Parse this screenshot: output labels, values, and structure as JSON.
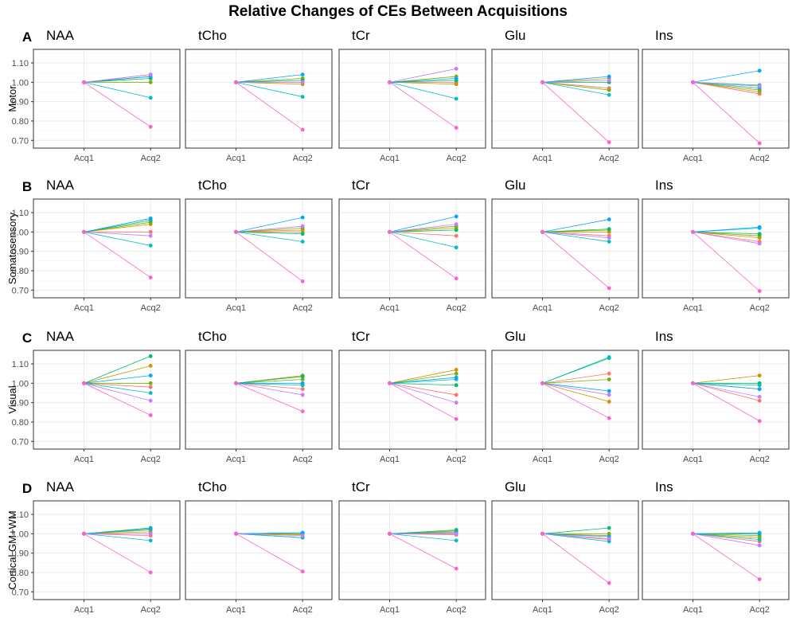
{
  "chart_data": {
    "type": "line",
    "title": "Relative Changes of CEs Between Acquisitions",
    "x": [
      "Acq1",
      "Acq2"
    ],
    "ylim": [
      0.66,
      1.17
    ],
    "yticks": [
      "0.70",
      "0.80",
      "0.90",
      "1.00",
      "1.10"
    ],
    "metabolites": [
      "NAA",
      "tCho",
      "tCr",
      "Glu",
      "Ins"
    ],
    "colors": [
      "#F8766D",
      "#CD9600",
      "#7CAE00",
      "#00BE67",
      "#00BFC4",
      "#00A9FF",
      "#C77CFF",
      "#FF61CC"
    ],
    "rows": [
      {
        "letter": "A",
        "region": "Motor",
        "panels": [
          {
            "metabolite": "NAA",
            "acq1": 1.0,
            "acq2": [
              1.04,
              1.03,
              1.0,
              1.02,
              0.92,
              1.03,
              1.04,
              0.77
            ]
          },
          {
            "metabolite": "tCho",
            "acq1": 1.0,
            "acq2": [
              1.0,
              0.99,
              1.02,
              1.01,
              0.925,
              1.04,
              1.0,
              0.755
            ]
          },
          {
            "metabolite": "tCr",
            "acq1": 1.0,
            "acq2": [
              1.0,
              0.99,
              1.03,
              1.01,
              0.915,
              1.02,
              1.07,
              0.765
            ]
          },
          {
            "metabolite": "Glu",
            "acq1": 1.0,
            "acq2": [
              0.97,
              1.02,
              0.96,
              1.0,
              0.935,
              1.03,
              1.01,
              0.69
            ]
          },
          {
            "metabolite": "Ins",
            "acq1": 1.0,
            "acq2": [
              0.94,
              0.95,
              0.96,
              0.985,
              0.97,
              1.06,
              0.98,
              0.685
            ]
          }
        ]
      },
      {
        "letter": "B",
        "region": "Somatosensory",
        "panels": [
          {
            "metabolite": "NAA",
            "acq1": 1.0,
            "acq2": [
              1.0,
              1.04,
              1.05,
              1.06,
              0.93,
              1.07,
              0.98,
              0.765
            ]
          },
          {
            "metabolite": "tCho",
            "acq1": 1.0,
            "acq2": [
              1.0,
              1.01,
              1.02,
              0.99,
              0.95,
              1.075,
              1.03,
              0.745
            ]
          },
          {
            "metabolite": "tCr",
            "acq1": 1.0,
            "acq2": [
              0.98,
              1.02,
              1.03,
              1.01,
              0.92,
              1.08,
              1.04,
              0.76
            ]
          },
          {
            "metabolite": "Glu",
            "acq1": 1.0,
            "acq2": [
              0.98,
              1.0,
              1.01,
              1.015,
              0.95,
              1.065,
              0.97,
              0.71
            ]
          },
          {
            "metabolite": "Ins",
            "acq1": 1.0,
            "acq2": [
              0.95,
              0.97,
              0.98,
              0.99,
              1.02,
              1.025,
              0.94,
              0.695
            ]
          }
        ]
      },
      {
        "letter": "C",
        "region": "Visual",
        "panels": [
          {
            "metabolite": "NAA",
            "acq1": 1.0,
            "acq2": [
              0.98,
              1.09,
              1.0,
              1.14,
              0.95,
              1.04,
              0.91,
              0.835
            ]
          },
          {
            "metabolite": "tCho",
            "acq1": 1.0,
            "acq2": [
              0.97,
              1.04,
              1.02,
              1.035,
              0.99,
              1.0,
              0.94,
              0.855
            ]
          },
          {
            "metabolite": "tCr",
            "acq1": 1.0,
            "acq2": [
              0.94,
              1.07,
              1.05,
              0.99,
              1.02,
              1.03,
              0.9,
              0.815
            ]
          },
          {
            "metabolite": "Glu",
            "acq1": 1.0,
            "acq2": [
              1.05,
              0.905,
              1.02,
              1.13,
              1.135,
              0.96,
              0.94,
              0.82
            ]
          },
          {
            "metabolite": "Ins",
            "acq1": 1.0,
            "acq2": [
              0.91,
              1.04,
              0.97,
              1.0,
              0.99,
              0.97,
              0.93,
              0.805
            ]
          }
        ]
      },
      {
        "letter": "D",
        "region": "Cortical GM+WM",
        "panels": [
          {
            "metabolite": "NAA",
            "acq1": 1.0,
            "acq2": [
              0.99,
              1.01,
              1.02,
              1.03,
              0.965,
              1.025,
              1.0,
              0.8
            ]
          },
          {
            "metabolite": "tCho",
            "acq1": 1.0,
            "acq2": [
              0.98,
              0.995,
              1.0,
              1.005,
              0.98,
              1.005,
              0.99,
              0.805
            ]
          },
          {
            "metabolite": "tCr",
            "acq1": 1.0,
            "acq2": [
              0.995,
              1.01,
              1.015,
              1.02,
              0.965,
              1.005,
              1.0,
              0.82
            ]
          },
          {
            "metabolite": "Glu",
            "acq1": 1.0,
            "acq2": [
              0.97,
              0.99,
              1.0,
              1.03,
              0.96,
              0.985,
              0.975,
              0.745
            ]
          },
          {
            "metabolite": "Ins",
            "acq1": 1.0,
            "acq2": [
              0.96,
              0.98,
              0.99,
              1.0,
              0.97,
              1.005,
              0.94,
              0.765
            ]
          }
        ]
      }
    ]
  }
}
